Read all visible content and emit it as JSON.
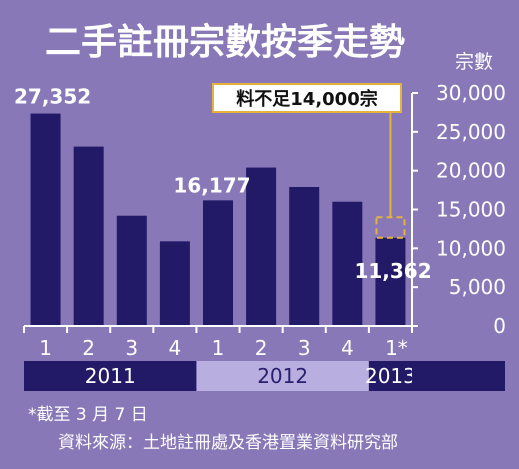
{
  "chart_data": {
    "type": "bar",
    "title": "二手註冊宗數按季走勢",
    "ylabel": "宗數",
    "ylim": [
      0,
      30000
    ],
    "yticks": [
      0,
      5000,
      10000,
      15000,
      20000,
      25000,
      30000
    ],
    "ytick_labels": [
      "0",
      "5,000",
      "10,000",
      "15,000",
      "20,000",
      "25,000",
      "30,000"
    ],
    "categories": [
      "1",
      "2",
      "3",
      "4",
      "1",
      "2",
      "3",
      "4",
      "1*"
    ],
    "values": [
      27352,
      23100,
      14200,
      10900,
      16177,
      20400,
      17900,
      16000,
      11362
    ],
    "years": [
      {
        "label": "2011",
        "count": 4,
        "style": "dark"
      },
      {
        "label": "2012",
        "count": 4,
        "style": "light"
      },
      {
        "label": "2013",
        "count": 1,
        "style": "dark"
      }
    ],
    "data_labels": [
      {
        "index": 0,
        "text": "27,352"
      },
      {
        "index": 4,
        "text": "16,177"
      },
      {
        "index": 8,
        "text": "11,362"
      }
    ],
    "reference": {
      "index": 8,
      "value": 14000,
      "label": "料不足14,000宗"
    },
    "colors": {
      "bar": "#221a66",
      "background": "#8878b8",
      "dashed": "#e6b33a",
      "year_light": "#b8aee0"
    }
  },
  "notes": {
    "footnote": "*截至 3 月 7 日",
    "source": "資料來源：土地註冊處及香港置業資料研究部"
  }
}
